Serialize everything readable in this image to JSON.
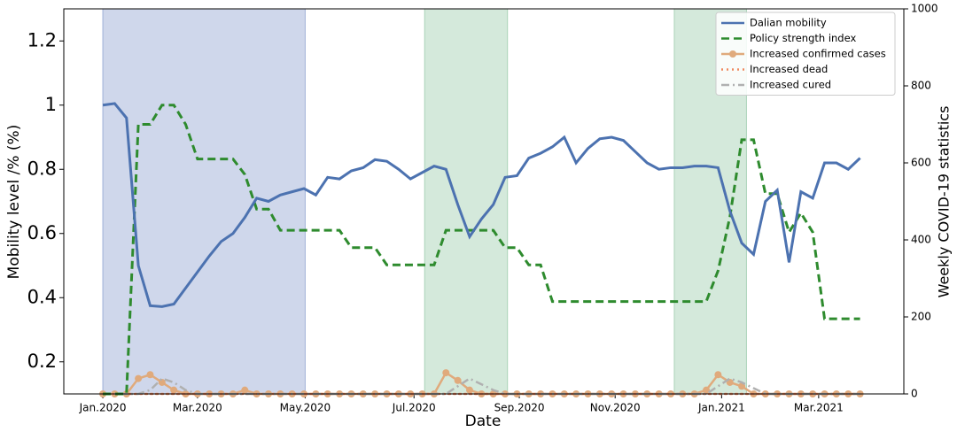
{
  "chart_data": {
    "type": "line",
    "xlabel": "Date",
    "ylabel": "Mobility  level /% (%)",
    "y2label": "Weekly COVID-19 statistics",
    "x": [
      0,
      1,
      2,
      3,
      4,
      5,
      6,
      7,
      8,
      9,
      10,
      11,
      12,
      13,
      14,
      15,
      16,
      17,
      18,
      19,
      20,
      21,
      22,
      23,
      24,
      25,
      26,
      27,
      28,
      29,
      30,
      31,
      32,
      33,
      34,
      35,
      36,
      37,
      38,
      39,
      40,
      41,
      42,
      43,
      44,
      45,
      46,
      47,
      48,
      49,
      50,
      51,
      52,
      53,
      54,
      55,
      56,
      57,
      58,
      59,
      60,
      61,
      62,
      63,
      64
    ],
    "xlim": [
      -3.3,
      67.7
    ],
    "xticks": [
      {
        "value": 0,
        "label": "Jan.2020"
      },
      {
        "value": 8,
        "label": "Mar.2020"
      },
      {
        "value": 17.1,
        "label": "May.2020"
      },
      {
        "value": 26.3,
        "label": "Jul.2020"
      },
      {
        "value": 35.2,
        "label": "Sep.2020"
      },
      {
        "value": 43.3,
        "label": "Nov.2020"
      },
      {
        "value": 52.3,
        "label": "Jan.2021"
      },
      {
        "value": 60.5,
        "label": "Mar.2021"
      }
    ],
    "ylim": [
      0.1,
      1.3
    ],
    "yticks": [
      0.2,
      0.4,
      0.6,
      0.8,
      1.0,
      1.2
    ],
    "y2lim": [
      0,
      1000
    ],
    "y2ticks": [
      0,
      200,
      400,
      600,
      800,
      1000
    ],
    "legend": "upper right",
    "spans": [
      {
        "from": 0,
        "to": 17.1,
        "color": "#9fb0d8"
      },
      {
        "from": 27.2,
        "to": 34.2,
        "color": "#a9d3b8"
      },
      {
        "from": 48.3,
        "to": 54.4,
        "color": "#a9d3b8"
      }
    ],
    "series": [
      {
        "name": "Dalian mobility",
        "color": "#4c72b0",
        "style": "solid",
        "axis": "y",
        "values": [
          1.0,
          1.005,
          0.96,
          0.5,
          0.375,
          0.372,
          0.38,
          0.43,
          0.48,
          0.53,
          0.575,
          0.6,
          0.65,
          0.71,
          0.7,
          0.72,
          0.73,
          0.74,
          0.72,
          0.775,
          0.77,
          0.795,
          0.805,
          0.83,
          0.825,
          0.8,
          0.77,
          0.79,
          0.81,
          0.8,
          0.69,
          0.59,
          0.645,
          0.69,
          0.775,
          0.78,
          0.835,
          0.85,
          0.87,
          0.9,
          0.82,
          0.865,
          0.895,
          0.9,
          0.89,
          0.855,
          0.82,
          0.8,
          0.805,
          0.805,
          0.81,
          0.81,
          0.805,
          0.67,
          0.57,
          0.535,
          0.7,
          0.735,
          0.51,
          0.73,
          0.71,
          0.82,
          0.82,
          0.8,
          0.835
        ]
      },
      {
        "name": "Policy strength index",
        "color": "#2e8b2e",
        "style": "dashed",
        "axis": "y2",
        "values": [
          0,
          0,
          0,
          700,
          700,
          750,
          750,
          700,
          610,
          610,
          610,
          610,
          570,
          480,
          480,
          425,
          425,
          425,
          425,
          425,
          425,
          380,
          380,
          380,
          335,
          335,
          335,
          335,
          335,
          425,
          425,
          425,
          425,
          425,
          380,
          380,
          335,
          335,
          240,
          240,
          240,
          240,
          240,
          240,
          240,
          240,
          240,
          240,
          240,
          240,
          240,
          240,
          320,
          460,
          660,
          660,
          520,
          520,
          420,
          470,
          420,
          195,
          195,
          195,
          195
        ]
      },
      {
        "name": "Increased confirmed cases",
        "color": "#e0aa7c",
        "style": "marker",
        "axis": "y2",
        "values": [
          0,
          0,
          0,
          40,
          50,
          30,
          10,
          0,
          0,
          0,
          0,
          0,
          10,
          0,
          0,
          0,
          0,
          0,
          0,
          0,
          0,
          0,
          0,
          0,
          0,
          0,
          0,
          0,
          0,
          55,
          35,
          10,
          0,
          0,
          0,
          0,
          0,
          0,
          0,
          0,
          0,
          0,
          0,
          0,
          0,
          0,
          0,
          0,
          0,
          0,
          0,
          10,
          50,
          30,
          20,
          0,
          0,
          0,
          0,
          0,
          0,
          0,
          0,
          0,
          0
        ]
      },
      {
        "name": "Increased dead",
        "color": "#f08a60",
        "style": "dotted",
        "axis": "y2",
        "values": [
          0,
          0,
          0,
          0,
          0,
          0,
          0,
          0,
          0,
          0,
          0,
          0,
          0,
          0,
          0,
          0,
          0,
          0,
          0,
          0,
          0,
          0,
          0,
          0,
          0,
          0,
          0,
          0,
          0,
          0,
          0,
          0,
          0,
          0,
          0,
          0,
          0,
          0,
          0,
          0,
          0,
          0,
          0,
          0,
          0,
          0,
          0,
          0,
          0,
          0,
          0,
          0,
          0,
          0,
          0,
          0,
          0,
          0,
          0,
          0,
          0,
          0,
          0,
          0,
          0
        ]
      },
      {
        "name": " Increased cured",
        "color": "#b0b0b0",
        "style": "dashdot",
        "axis": "y2",
        "values": [
          0,
          0,
          0,
          0,
          10,
          40,
          30,
          10,
          0,
          0,
          0,
          0,
          0,
          0,
          0,
          0,
          0,
          0,
          0,
          0,
          0,
          0,
          0,
          0,
          0,
          0,
          0,
          0,
          0,
          0,
          20,
          40,
          25,
          10,
          0,
          0,
          0,
          0,
          0,
          0,
          0,
          0,
          0,
          0,
          0,
          0,
          0,
          0,
          0,
          0,
          0,
          0,
          20,
          40,
          30,
          15,
          0,
          0,
          0,
          0,
          0,
          0,
          0,
          0,
          0
        ]
      }
    ]
  }
}
